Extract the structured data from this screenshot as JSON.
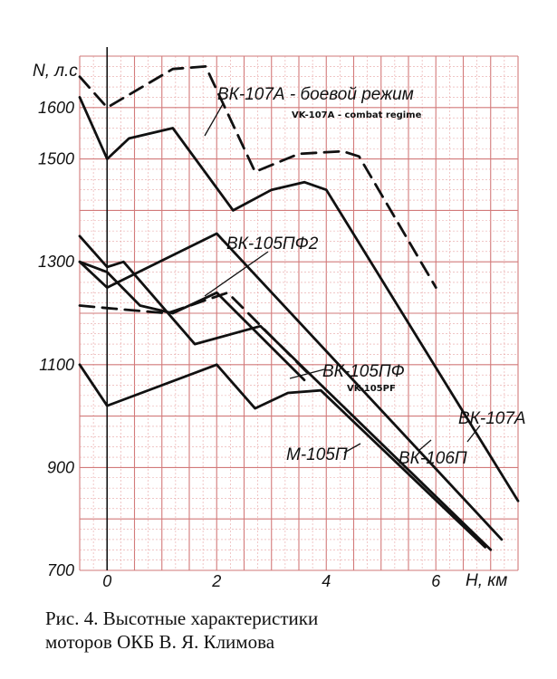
{
  "chart_data": {
    "type": "line",
    "title": "Рис. 4. Высотные характеристики моторов ОКБ В. Я. Климова",
    "xlabel": "H, км",
    "ylabel": "N, л.с",
    "xlim": [
      -0.5,
      7.5
    ],
    "ylim": [
      700,
      1700
    ],
    "x_ticks": [
      "0",
      "2",
      "4",
      "6"
    ],
    "y_ticks": [
      "1600",
      "1500",
      "1300",
      "1100",
      "900",
      "700"
    ],
    "x_tick_values": [
      0,
      2,
      4,
      6
    ],
    "y_tick_values": [
      1600,
      1500,
      1300,
      1100,
      900,
      700
    ],
    "grid": true,
    "series": [
      {
        "name": "ВК-107А - боевой режим",
        "style": "dashed",
        "points": [
          [
            -0.5,
            1660
          ],
          [
            0,
            1600
          ],
          [
            1.2,
            1675
          ],
          [
            1.8,
            1680
          ],
          [
            2.7,
            1475
          ],
          [
            3.5,
            1510
          ],
          [
            4.3,
            1515
          ],
          [
            4.6,
            1505
          ],
          [
            6.0,
            1250
          ]
        ]
      },
      {
        "name": "ВК-107А",
        "style": "solid",
        "points": [
          [
            -0.5,
            1620
          ],
          [
            0,
            1500
          ],
          [
            0.4,
            1540
          ],
          [
            1.2,
            1560
          ],
          [
            2.3,
            1400
          ],
          [
            3.0,
            1440
          ],
          [
            3.6,
            1455
          ],
          [
            4.0,
            1440
          ],
          [
            7.5,
            835
          ]
        ]
      },
      {
        "name": "ВК-105ПФ2",
        "style": "solid",
        "points": [
          [
            -0.5,
            1300
          ],
          [
            0,
            1250
          ],
          [
            2.0,
            1355
          ],
          [
            7.2,
            760
          ]
        ]
      },
      {
        "name": "ВК-105ПФ2 (боевой режим)",
        "style": "dashed",
        "points": [
          [
            -0.5,
            1215
          ],
          [
            0,
            1210
          ],
          [
            1.1,
            1200
          ],
          [
            2.2,
            1240
          ],
          [
            3.7,
            1080
          ]
        ]
      },
      {
        "name": "ВК-105ПФ",
        "style": "solid",
        "points": [
          [
            -0.5,
            1350
          ],
          [
            0,
            1290
          ],
          [
            0.3,
            1300
          ],
          [
            1.6,
            1140
          ],
          [
            2.8,
            1175
          ],
          [
            7.0,
            740
          ]
        ]
      },
      {
        "name": "ВК-106П",
        "style": "solid",
        "points": [
          [
            -0.5,
            1300
          ],
          [
            0,
            1280
          ],
          [
            0.6,
            1215
          ],
          [
            1.2,
            1200
          ],
          [
            2.0,
            1240
          ],
          [
            3.6,
            1070
          ]
        ]
      },
      {
        "name": "М-105П",
        "style": "solid",
        "points": [
          [
            -0.5,
            1100
          ],
          [
            0,
            1020
          ],
          [
            2.0,
            1100
          ],
          [
            2.7,
            1015
          ],
          [
            3.3,
            1045
          ],
          [
            3.9,
            1050
          ],
          [
            6.9,
            745
          ]
        ]
      }
    ],
    "labels": {
      "vk107a_combat": "ВК-107А - боевой режим",
      "vk107a_combat_en": "VK-107A - combat regime",
      "vk105pf2": "ВК-105ПФ2",
      "vk105pf": "ВК-105ПФ",
      "vk105pf_en": "VK-105PF",
      "vk107a": "ВК-107А",
      "m105p": "М-105П",
      "vk106p": "ВК-106П"
    }
  },
  "caption": {
    "line1": "Рис. 4. Высотные характеристики",
    "line2": "моторов ОКБ В. Я. Климова"
  },
  "colors": {
    "grid": "#e8a4a4",
    "grid_major": "#d27a7a",
    "ink": "#111111"
  }
}
